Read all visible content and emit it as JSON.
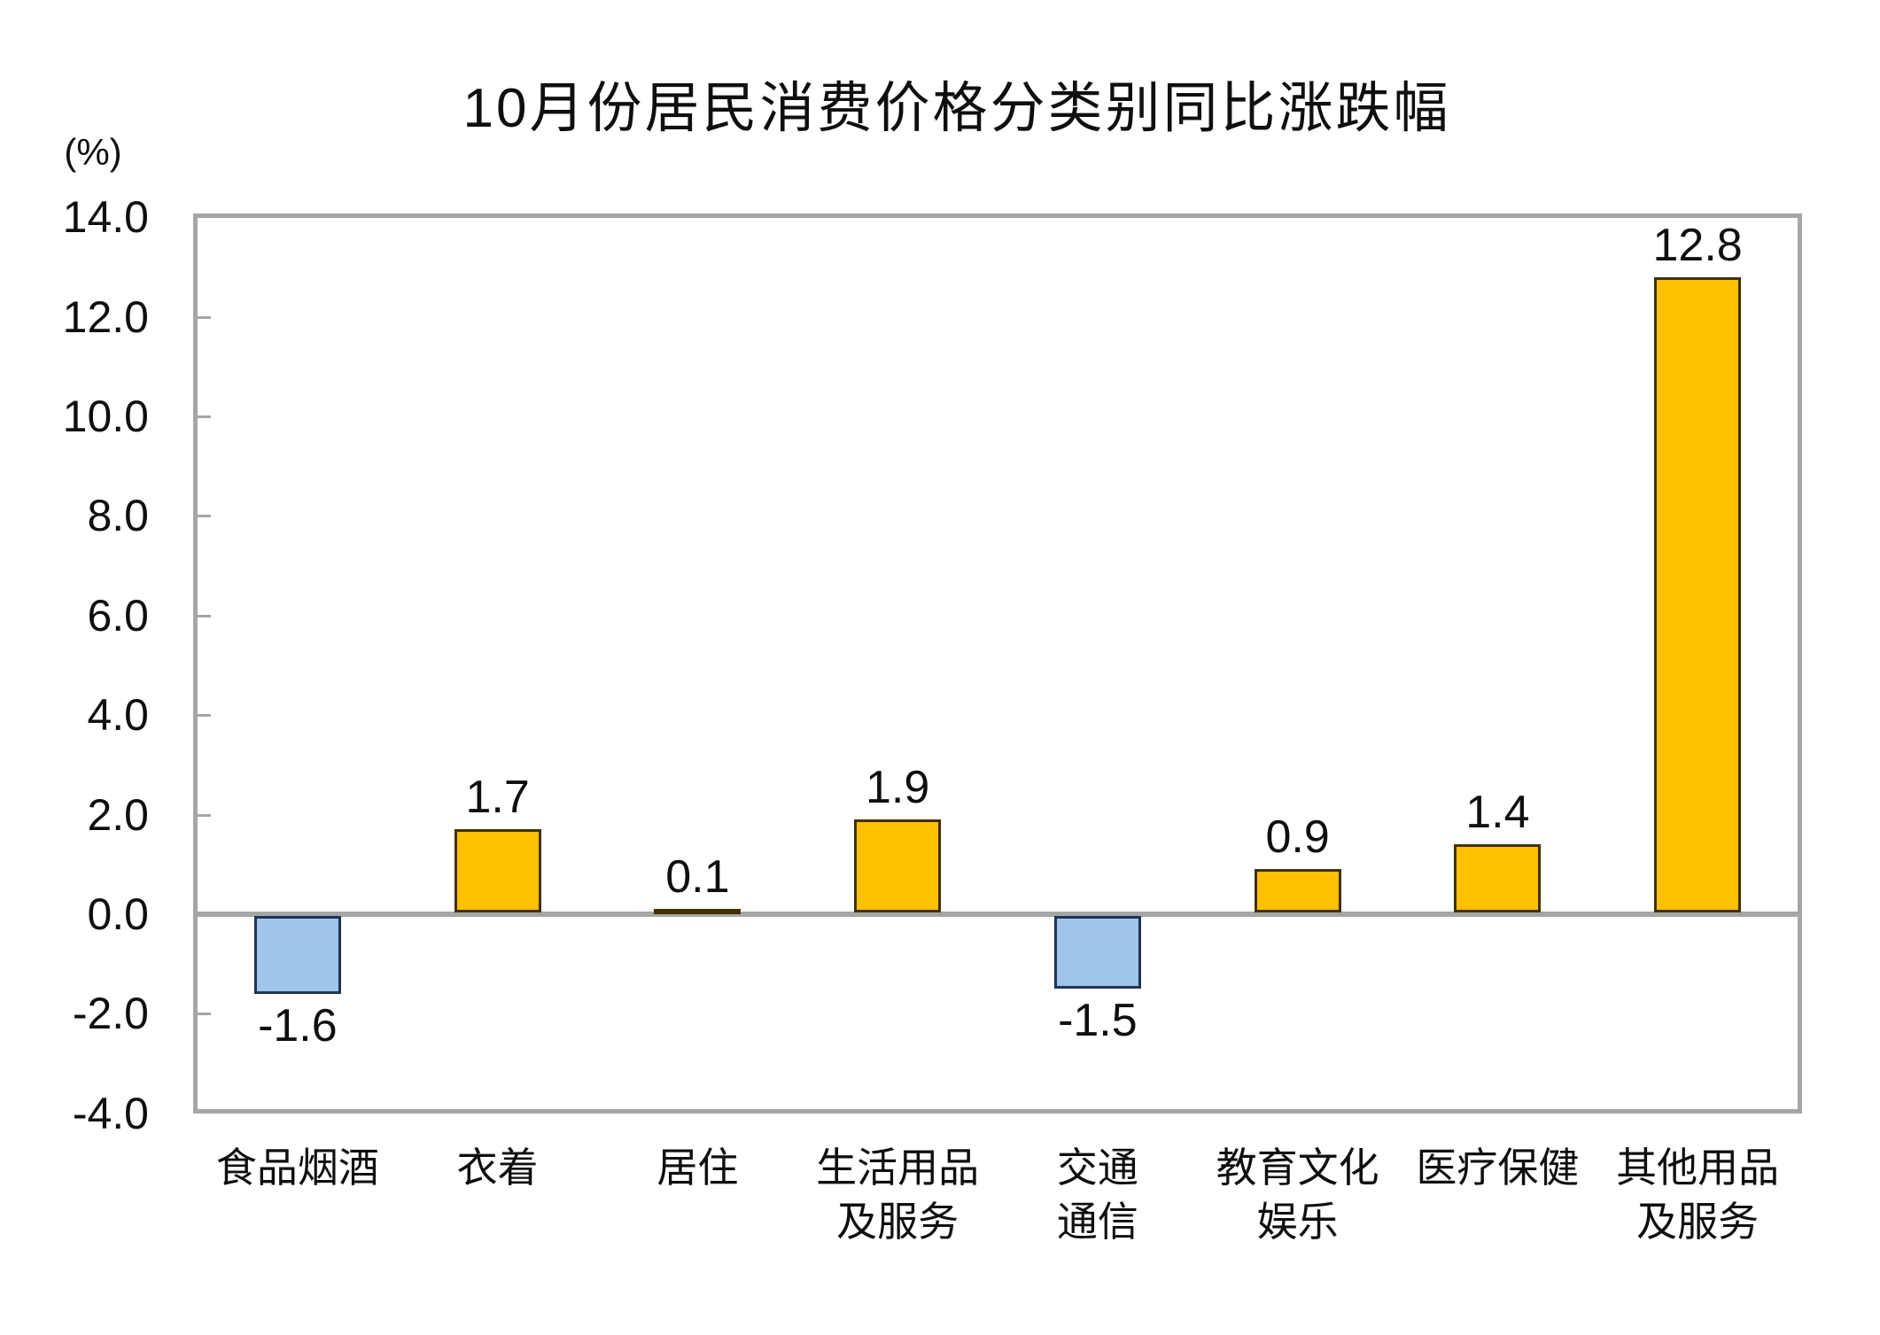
{
  "chart": {
    "title": "10月份居民消费价格分类别同比涨跌幅",
    "unit_label": "(%)"
  },
  "chart_data": {
    "type": "bar",
    "title": "10月份居民消费价格分类别同比涨跌幅",
    "unit": "(%)",
    "categories": [
      "食品烟酒",
      "衣着",
      "居住",
      "生活用品及服务",
      "交通通信",
      "教育文化娱乐",
      "医疗保健",
      "其他用品及服务"
    ],
    "category_lines": [
      [
        "食品烟酒"
      ],
      [
        "衣着"
      ],
      [
        "居住"
      ],
      [
        "生活用品",
        "及服务"
      ],
      [
        "交通",
        "通信"
      ],
      [
        "教育文化",
        "娱乐"
      ],
      [
        "医疗保健"
      ],
      [
        "其他用品",
        "及服务"
      ]
    ],
    "values": [
      -1.6,
      1.7,
      0.1,
      1.9,
      -1.5,
      0.9,
      1.4,
      12.8
    ],
    "data_labels": [
      "-1.6",
      "1.7",
      "0.1",
      "1.9",
      "-1.5",
      "0.9",
      "1.4",
      "12.8"
    ],
    "ylim": [
      -4.0,
      14.0
    ],
    "ytick_step": 2.0,
    "ytick_labels": [
      "14.0",
      "12.0",
      "10.0",
      "8.0",
      "6.0",
      "4.0",
      "2.0",
      "0.0",
      "-2.0",
      "-4.0"
    ],
    "ytick_values": [
      14,
      12,
      10,
      8,
      6,
      4,
      2,
      0,
      -2,
      -4
    ],
    "inner_tick_values": [
      12,
      10,
      8,
      6,
      4,
      2,
      -2
    ],
    "grid": false,
    "legend": "none",
    "colors": {
      "positive_fill": "#FFC000",
      "positive_border": "#403000",
      "negative_fill": "#9FC5EA",
      "negative_border": "#1F3550",
      "axis": "#A6A6A6",
      "text": "#0f0f0f"
    }
  }
}
